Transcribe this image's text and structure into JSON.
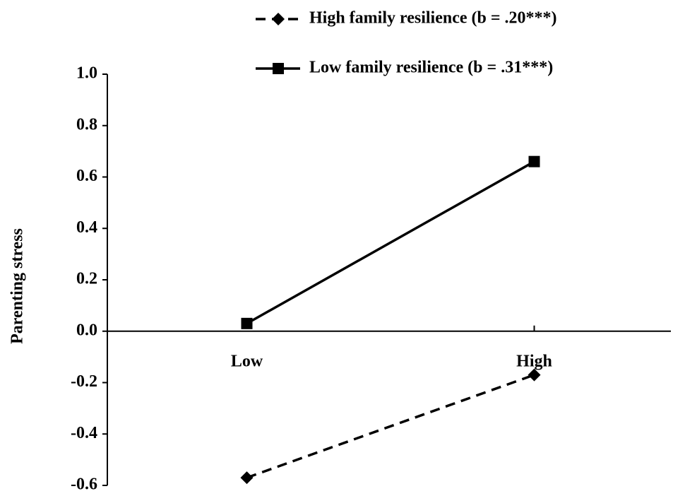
{
  "chart_data": {
    "type": "line",
    "y_label": "Parenting stress",
    "categories": [
      "Low",
      "High"
    ],
    "series": [
      {
        "name": "High family resilience (b = .20***)",
        "color": "#000000",
        "linestyle": "dashed",
        "marker": "diamond",
        "values": [
          -0.57,
          -0.17
        ]
      },
      {
        "name": "Low family resilience (b = .31***)",
        "color": "#000000",
        "linestyle": "solid",
        "marker": "square",
        "values": [
          0.03,
          0.66
        ]
      }
    ],
    "ylim": [
      -0.6,
      1.0
    ],
    "yticks": [
      {
        "value": 1.0,
        "label": "1.0"
      },
      0.8,
      0.6,
      0.4,
      0.2,
      {
        "value": 0,
        "label": "0.0"
      },
      -0.2,
      -0.4,
      -0.6
    ]
  }
}
